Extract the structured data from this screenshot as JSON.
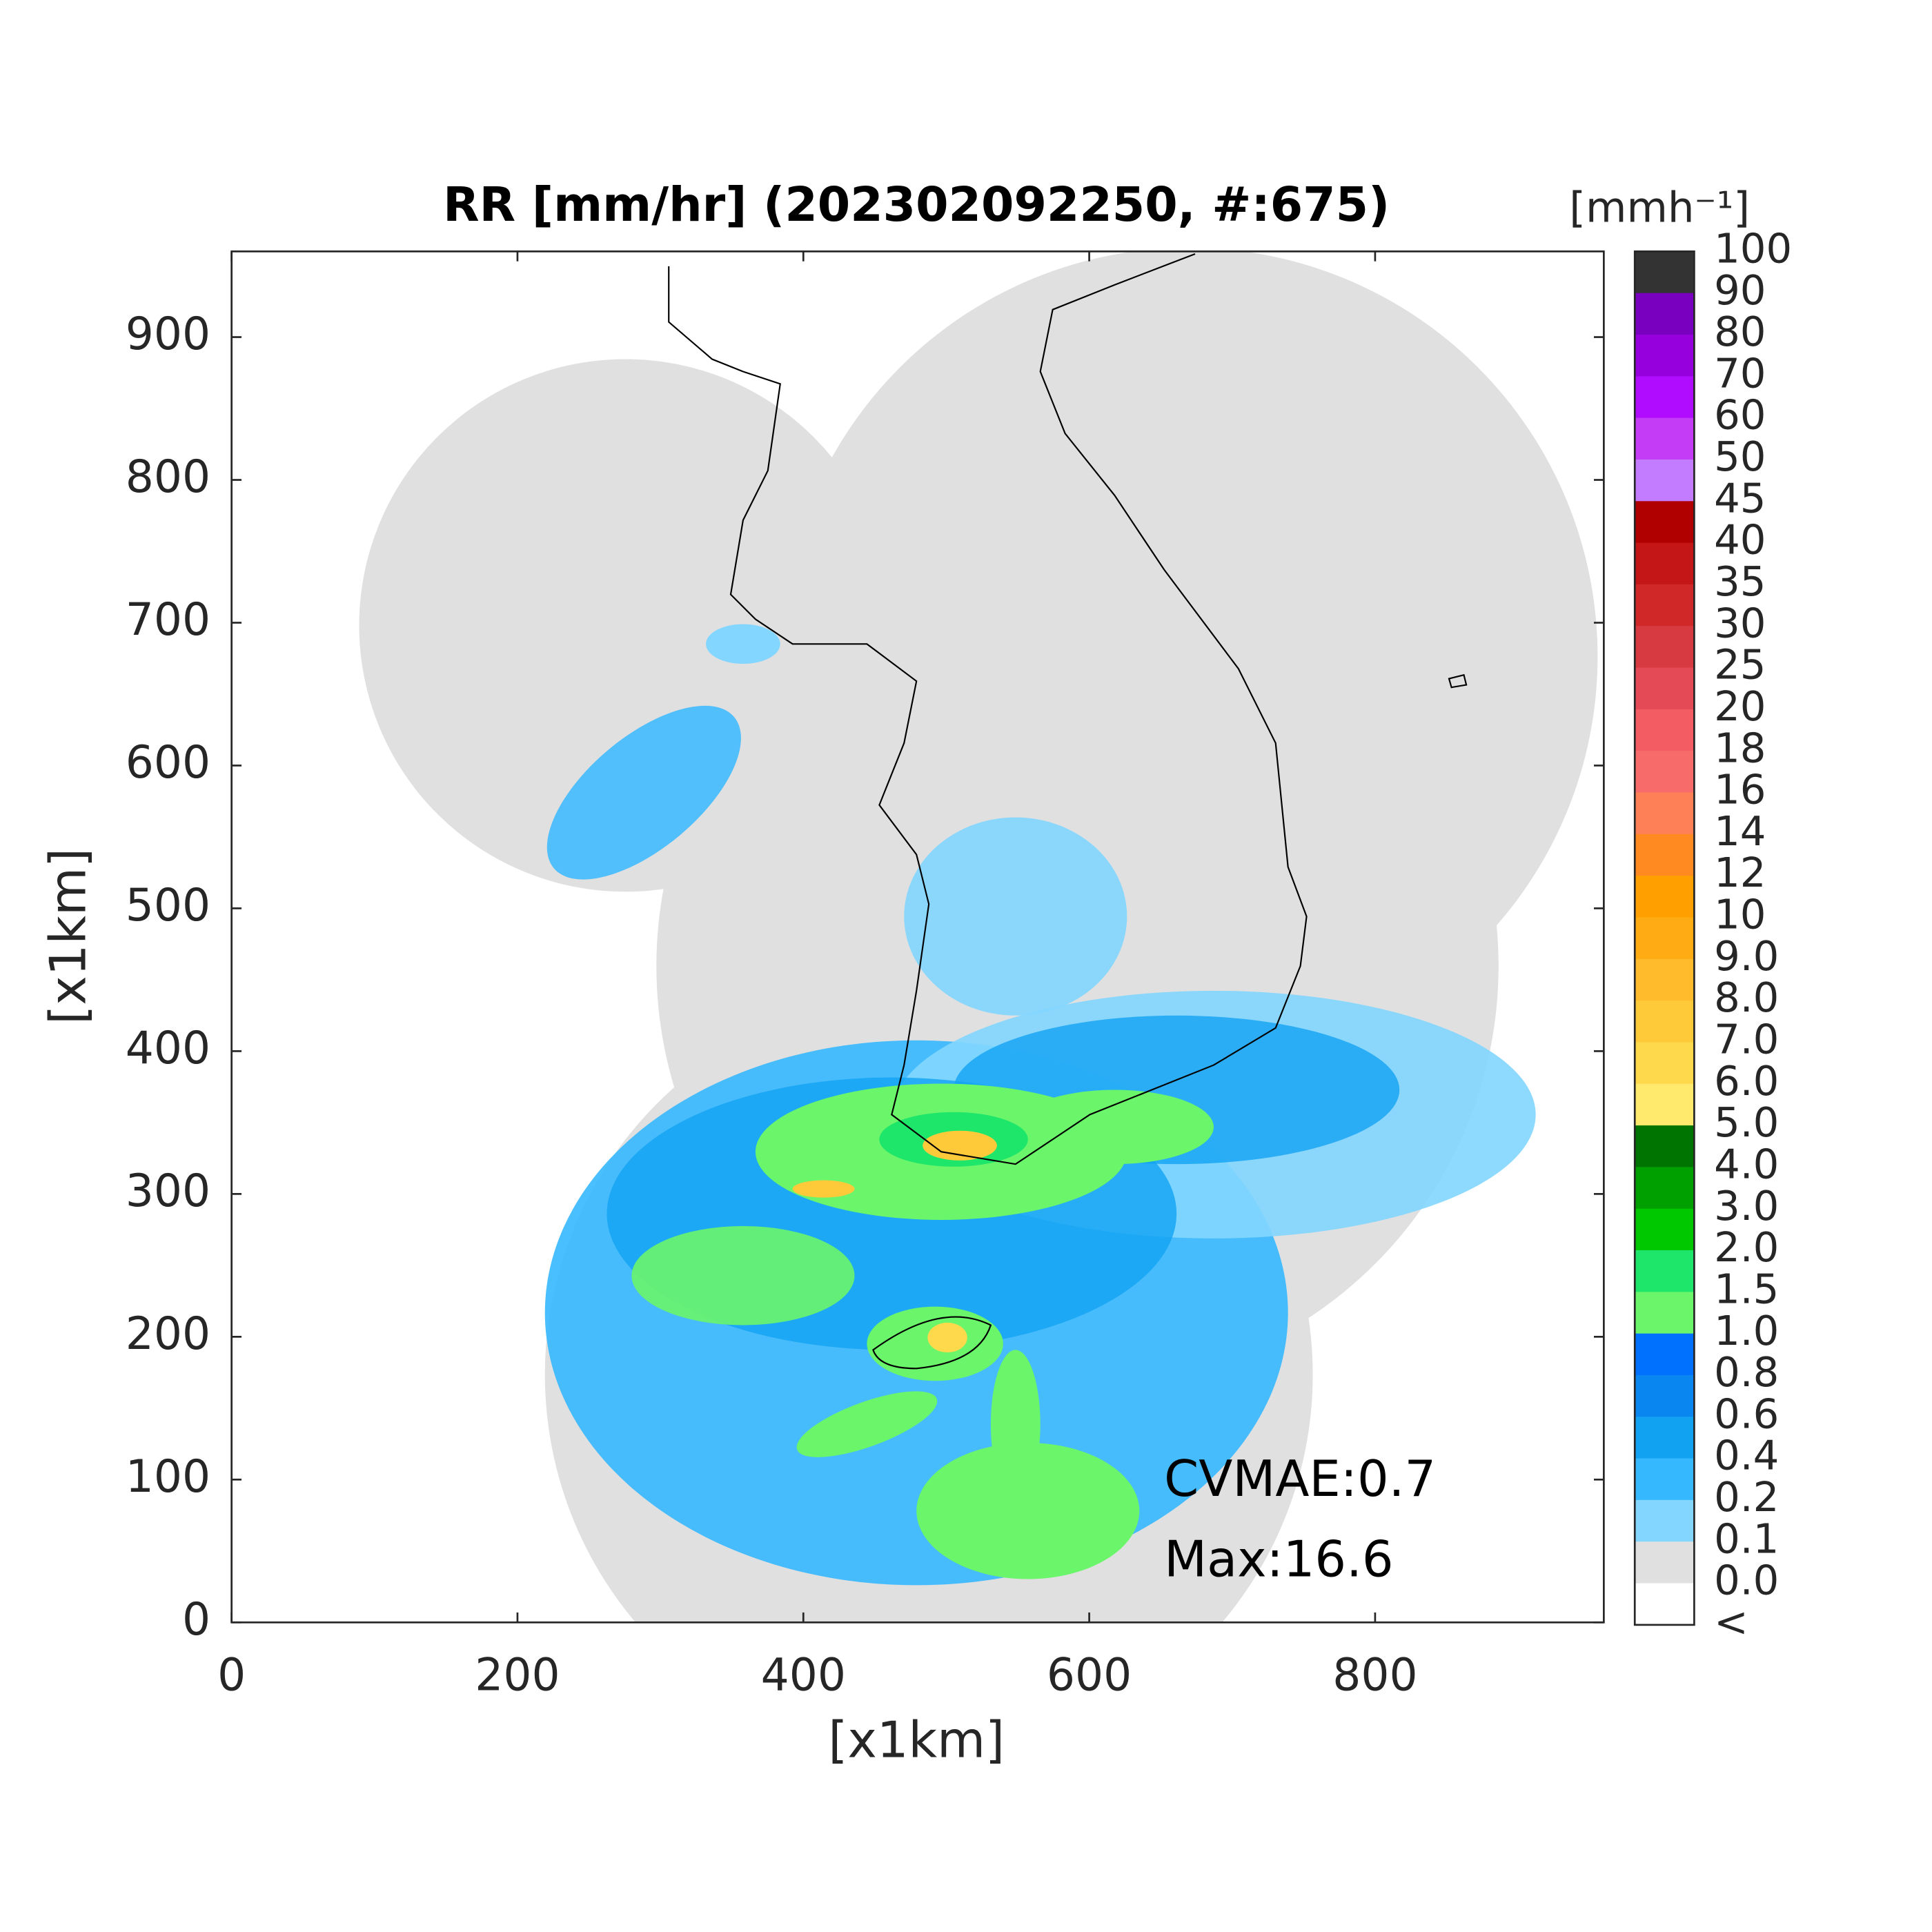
{
  "map": {
    "title": "RR [mm/hr] (202302092250, #:675)",
    "xlabel": "[x1km]",
    "ylabel": "[x1km]",
    "xlim": [
      0,
      960
    ],
    "ylim": [
      0,
      960
    ],
    "xticks": [
      0,
      200,
      400,
      600,
      800
    ],
    "yticks": [
      0,
      100,
      200,
      300,
      400,
      500,
      600,
      700,
      800,
      900
    ],
    "annotations": [
      "CVMAE:0.7",
      "Max:16.6"
    ]
  },
  "colorbar": {
    "units": "[mmh⁻¹]",
    "labels": [
      "100",
      "90",
      "80",
      "70",
      "60",
      "50",
      "45",
      "40",
      "35",
      "30",
      "25",
      "20",
      "18",
      "16",
      "14",
      "12",
      "10",
      "9.0",
      "8.0",
      "7.0",
      "6.0",
      "5.0",
      "4.0",
      "3.0",
      "2.0",
      "1.5",
      "1.0",
      "0.8",
      "0.6",
      "0.4",
      "0.2",
      "0.1",
      "0.0",
      "<"
    ],
    "colors": [
      "#333333",
      "#7a00bf",
      "#9500dc",
      "#b00cff",
      "#c43cf5",
      "#c37cff",
      "#b00000",
      "#c41616",
      "#d02828",
      "#d83a42",
      "#e44a55",
      "#f25c62",
      "#f76b6b",
      "#fd8057",
      "#ff8a22",
      "#ff9f00",
      "#ffab14",
      "#ffbb2c",
      "#ffca3a",
      "#ffd94c",
      "#ffea6e",
      "#007400",
      "#00a000",
      "#00c800",
      "#1ee66a",
      "#6af56a",
      "#0070ff",
      "#0a86f0",
      "#12a2f2",
      "#36b8ff",
      "#82d6ff",
      "#e0e0e0",
      "#ffffff"
    ]
  }
}
